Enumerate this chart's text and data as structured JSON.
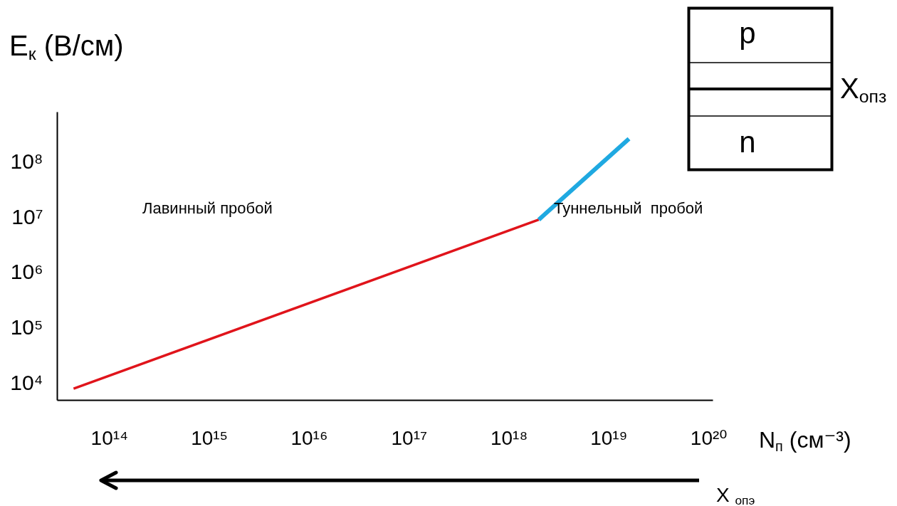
{
  "chart_data": {
    "type": "line",
    "xlabel": "N$_{п}$ (см⁻³)",
    "ylabel": "E$_{к}$ (В/см)",
    "log": "xy",
    "xlim": [
      30000000000000.0,
      1.1e+20
    ],
    "ylim": [
      5000,
      800000000.0
    ],
    "xticks": [
      {
        "value": 100000000000000.0,
        "label": "10¹⁴"
      },
      {
        "value": 1000000000000000.0,
        "label": "10¹⁵"
      },
      {
        "value": 1e+16,
        "label": "10¹⁶"
      },
      {
        "value": 1e+17,
        "label": "10¹⁷"
      },
      {
        "value": 1e+18,
        "label": "10¹⁸"
      },
      {
        "value": 1e+19,
        "label": "10¹⁹"
      },
      {
        "value": 1e+20,
        "label": "10²⁰"
      }
    ],
    "yticks": [
      {
        "value": 10000.0,
        "label": "10⁴"
      },
      {
        "value": 100000.0,
        "label": "10⁵"
      },
      {
        "value": 1000000.0,
        "label": "10⁶"
      },
      {
        "value": 10000000.0,
        "label": "10⁷"
      },
      {
        "value": 100000000.0,
        "label": "10⁸"
      }
    ],
    "series": [
      {
        "color": "#e0141b",
        "x": [
          44000000000000.0,
          2e+18
        ],
        "values": [
          8000,
          9000000
        ]
      },
      {
        "color": "#1fa9e1",
        "x": [
          2e+18,
          1.6e+19
        ],
        "values": [
          9000000,
          260000000
        ]
      }
    ],
    "annotations": [
      "Лавинный пробой",
      "Туннельный  пробой",
      "p",
      "n",
      "X$_{опз}$",
      "X $_{опэ}$"
    ]
  }
}
